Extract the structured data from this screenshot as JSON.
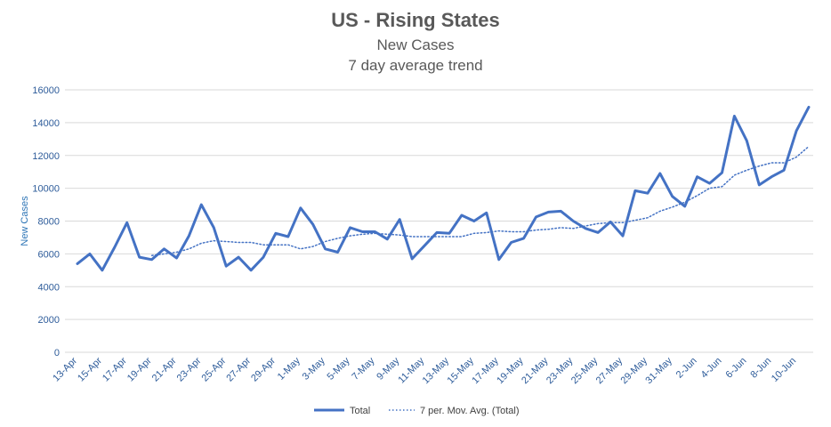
{
  "chart_data": {
    "type": "line",
    "title": "US - Rising States",
    "subtitle": [
      "New Cases",
      "7 day average trend"
    ],
    "xlabel": "",
    "ylabel": "New Cases",
    "ylim": [
      0,
      16000
    ],
    "yticks": [
      0,
      2000,
      4000,
      6000,
      8000,
      10000,
      12000,
      14000,
      16000
    ],
    "grid": true,
    "legend_position": "bottom",
    "x": [
      "13-Apr",
      "14-Apr",
      "15-Apr",
      "16-Apr",
      "17-Apr",
      "18-Apr",
      "19-Apr",
      "20-Apr",
      "21-Apr",
      "22-Apr",
      "23-Apr",
      "24-Apr",
      "25-Apr",
      "26-Apr",
      "27-Apr",
      "28-Apr",
      "29-Apr",
      "30-Apr",
      "1-May",
      "2-May",
      "3-May",
      "4-May",
      "5-May",
      "6-May",
      "7-May",
      "8-May",
      "9-May",
      "10-May",
      "11-May",
      "12-May",
      "13-May",
      "14-May",
      "15-May",
      "16-May",
      "17-May",
      "18-May",
      "19-May",
      "20-May",
      "21-May",
      "22-May",
      "23-May",
      "24-May",
      "25-May",
      "26-May",
      "27-May",
      "28-May",
      "29-May",
      "30-May",
      "31-May",
      "1-Jun",
      "2-Jun",
      "3-Jun",
      "4-Jun",
      "5-Jun",
      "6-Jun",
      "7-Jun",
      "8-Jun",
      "9-Jun",
      "10-Jun",
      "11-Jun"
    ],
    "xtick_labels": [
      "13-Apr",
      "15-Apr",
      "17-Apr",
      "19-Apr",
      "21-Apr",
      "23-Apr",
      "25-Apr",
      "27-Apr",
      "29-Apr",
      "1-May",
      "3-May",
      "5-May",
      "7-May",
      "9-May",
      "11-May",
      "13-May",
      "15-May",
      "17-May",
      "19-May",
      "21-May",
      "23-May",
      "25-May",
      "27-May",
      "29-May",
      "31-May",
      "2-Jun",
      "4-Jun",
      "6-Jun",
      "8-Jun",
      "10-Jun"
    ],
    "series": [
      {
        "name": "Total",
        "style": "solid",
        "color": "#4472c4",
        "values": [
          5400,
          6000,
          5000,
          6400,
          7900,
          5800,
          5650,
          6300,
          5750,
          7100,
          9000,
          7600,
          5250,
          5800,
          5000,
          5800,
          7250,
          7050,
          8800,
          7800,
          6300,
          6100,
          7600,
          7350,
          7350,
          6900,
          8100,
          5700,
          6500,
          7300,
          7250,
          8350,
          8000,
          8500,
          5650,
          6700,
          6950,
          8250,
          8550,
          8600,
          8000,
          7550,
          7300,
          7950,
          7100,
          9850,
          9700,
          10900,
          9500,
          8900,
          10700,
          10300,
          10950,
          14400,
          12900,
          10200,
          10700,
          11100,
          13500,
          14950
        ]
      },
      {
        "name": "7 per. Mov. Avg. (Total)",
        "style": "dotted",
        "color": "#4472c4",
        "values": [
          null,
          null,
          null,
          null,
          null,
          null,
          5900,
          6000,
          6100,
          6300,
          6650,
          6800,
          6750,
          6700,
          6700,
          6550,
          6550,
          6550,
          6300,
          6450,
          6750,
          6950,
          7100,
          7200,
          7250,
          7200,
          7150,
          7050,
          7050,
          7050,
          7050,
          7050,
          7250,
          7300,
          7400,
          7350,
          7350,
          7450,
          7500,
          7600,
          7550,
          7700,
          7850,
          7900,
          7900,
          8050,
          8200,
          8600,
          8850,
          9150,
          9550,
          10000,
          10100,
          10800,
          11100,
          11350,
          11550,
          11550,
          11900,
          12550
        ]
      }
    ]
  }
}
